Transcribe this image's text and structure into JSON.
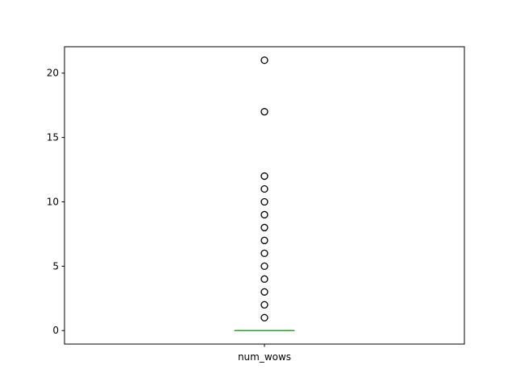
{
  "chart_data": {
    "type": "box",
    "categories": [
      "num_wows"
    ],
    "series": [
      {
        "box": {
          "min": 0,
          "q1": 0,
          "median": 0,
          "q3": 0,
          "max": 0
        },
        "outliers": [
          1,
          2,
          3,
          4,
          5,
          6,
          7,
          8,
          9,
          10,
          11,
          12,
          17,
          21
        ]
      }
    ],
    "yticks": [
      0,
      5,
      10,
      15,
      20
    ],
    "ylim": [
      -1.05,
      22.05
    ],
    "title": "",
    "xlabel": "",
    "ylabel": "",
    "grid": false,
    "colors": {
      "median": "#2ca02c",
      "box": "#1f77b4",
      "outlier_edge": "#000000",
      "axes": "#000000"
    }
  }
}
